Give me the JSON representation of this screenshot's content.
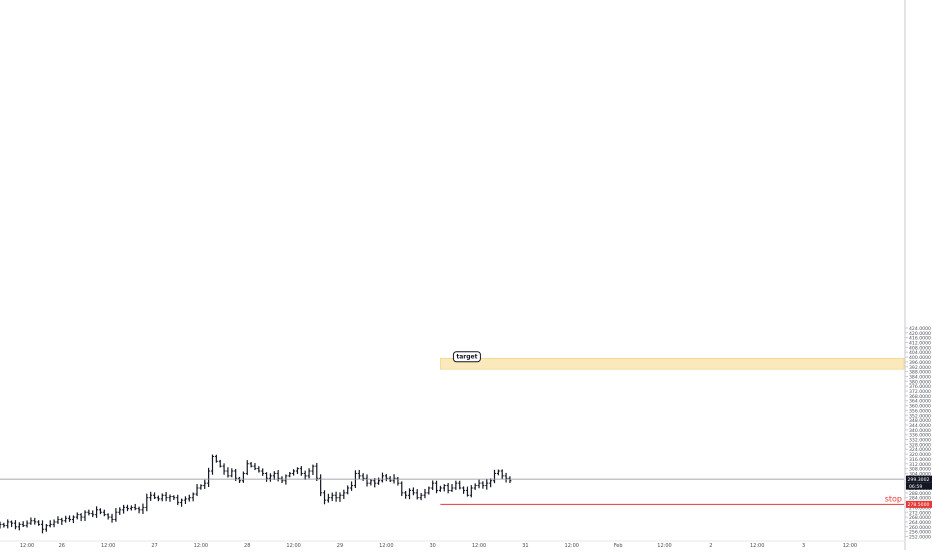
{
  "chart_data": {
    "type": "ohlc",
    "ylim": [
      250,
      426
    ],
    "y_ticks": [
      252,
      256,
      260,
      264,
      268,
      272,
      276,
      280,
      284,
      288,
      292,
      296,
      300,
      304,
      308,
      312,
      316,
      320,
      324,
      328,
      332,
      336,
      340,
      344,
      348,
      352,
      356,
      360,
      364,
      368,
      372,
      376,
      380,
      384,
      388,
      392,
      396,
      400,
      404,
      408,
      412,
      416,
      420,
      424
    ],
    "x_labels": [
      {
        "text": "12:00",
        "x": -9
      },
      {
        "text": "26",
        "x": 0
      },
      {
        "text": "12:00",
        "x": 12
      },
      {
        "text": "27",
        "x": 24
      },
      {
        "text": "12:00",
        "x": 36
      },
      {
        "text": "28",
        "x": 48
      },
      {
        "text": "12:00",
        "x": 60
      },
      {
        "text": "29",
        "x": 72
      },
      {
        "text": "12:00",
        "x": 84
      },
      {
        "text": "30",
        "x": 96
      },
      {
        "text": "12:00",
        "x": 108
      },
      {
        "text": "31",
        "x": 120
      },
      {
        "text": "12:00",
        "x": 132
      },
      {
        "text": "Feb",
        "x": 144
      },
      {
        "text": "12:00",
        "x": 156
      },
      {
        "text": "2",
        "x": 168
      },
      {
        "text": "12:00",
        "x": 180
      },
      {
        "text": "3",
        "x": 192
      },
      {
        "text": "12:00",
        "x": 204
      }
    ],
    "x_range": [
      -16,
      218
    ],
    "bar_interval_hours": 1,
    "series_closes": [
      262,
      261,
      264,
      263,
      260,
      262,
      261,
      263,
      265,
      264,
      262,
      258,
      261,
      262,
      264,
      266,
      265,
      267,
      266,
      268,
      270,
      268,
      272,
      271,
      270,
      274,
      272,
      270,
      268,
      266,
      272,
      274,
      276,
      275,
      276,
      275,
      274,
      276,
      284,
      286,
      284,
      283,
      286,
      284,
      285,
      284,
      280,
      282,
      283,
      284,
      287,
      292,
      294,
      296,
      306,
      318,
      314,
      310,
      306,
      302,
      306,
      300,
      298,
      304,
      312,
      310,
      308,
      306,
      304,
      300,
      302,
      304,
      300,
      298,
      302,
      304,
      306,
      308,
      304,
      302,
      306,
      310,
      300,
      288,
      282,
      284,
      286,
      284,
      286,
      288,
      292,
      294,
      304,
      302,
      300,
      296,
      298,
      296,
      298,
      302,
      300,
      298,
      300,
      296,
      288,
      286,
      290,
      288,
      284,
      286,
      288,
      292,
      296,
      290,
      292,
      294,
      290,
      292,
      296,
      292,
      290,
      286,
      292,
      294,
      296,
      294,
      296,
      298,
      304,
      306,
      302,
      300,
      298
    ],
    "last_price_label": "299.3002",
    "countdown_label": "06:59",
    "last_price_value": 299.3,
    "target_zone": {
      "low": 390,
      "high": 399,
      "x_start": 98,
      "label": "target"
    },
    "stop": {
      "value": 278.5,
      "x_start": 98,
      "label": "stop",
      "price_label": "278.5000"
    },
    "colors": {
      "bars": "#131722",
      "target_fill": "#fbe9bc",
      "target_border": "#f0cf7a",
      "stop": "#e53935",
      "last_price": "#131722",
      "axis_text": "#4a4e5a"
    }
  }
}
